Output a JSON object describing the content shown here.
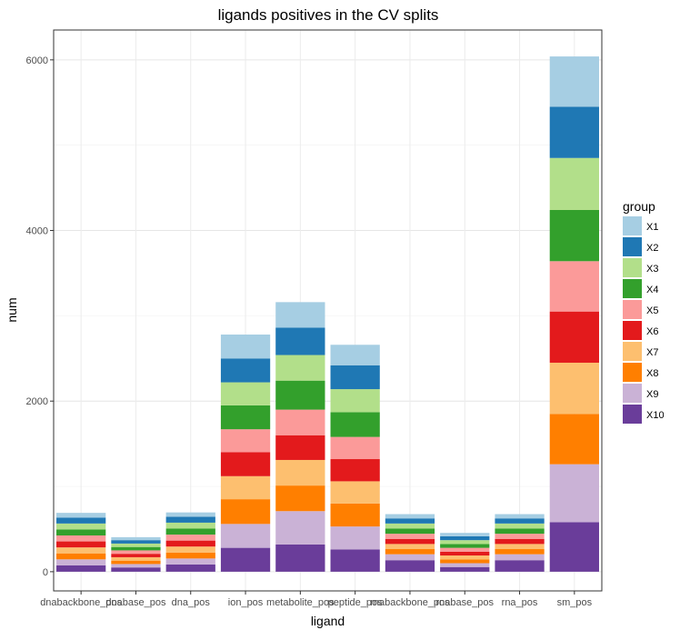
{
  "chart_data": {
    "type": "bar",
    "stacked": true,
    "title": "ligands positives in the CV splits",
    "xlabel": "ligand",
    "ylabel": "num",
    "ylim": [
      -225,
      6350
    ],
    "yticks": [
      0,
      2000,
      4000,
      6000
    ],
    "grid": true,
    "legend_title": "group",
    "legend_position": "right",
    "categories": [
      "dnabackbone_pos",
      "dnabase_pos",
      "dna_pos",
      "ion_pos",
      "metabolite_pos",
      "peptide_pos",
      "rnabackbone_pos",
      "rnabase_pos",
      "rna_pos",
      "sm_pos"
    ],
    "series": [
      {
        "name": "X10",
        "color": "#6A3D9A",
        "values": [
          75,
          50,
          85,
          280,
          320,
          260,
          135,
          55,
          135,
          580
        ]
      },
      {
        "name": "X9",
        "color": "#CAB2D6",
        "values": [
          70,
          40,
          70,
          280,
          390,
          270,
          70,
          45,
          70,
          680
        ]
      },
      {
        "name": "X8",
        "color": "#FF7F00",
        "values": [
          70,
          40,
          70,
          290,
          300,
          270,
          60,
          45,
          60,
          590
        ]
      },
      {
        "name": "X7",
        "color": "#FDBF6F",
        "values": [
          70,
          40,
          70,
          270,
          300,
          260,
          60,
          45,
          60,
          600
        ]
      },
      {
        "name": "X6",
        "color": "#E31A1C",
        "values": [
          70,
          40,
          70,
          280,
          290,
          260,
          60,
          45,
          60,
          600
        ]
      },
      {
        "name": "X5",
        "color": "#FB9A99",
        "values": [
          70,
          40,
          70,
          270,
          300,
          260,
          60,
          45,
          60,
          590
        ]
      },
      {
        "name": "X4",
        "color": "#33A02C",
        "values": [
          70,
          40,
          70,
          280,
          340,
          290,
          60,
          45,
          60,
          600
        ]
      },
      {
        "name": "X3",
        "color": "#B2DF8A",
        "values": [
          70,
          40,
          70,
          270,
          300,
          270,
          60,
          45,
          60,
          610
        ]
      },
      {
        "name": "X2",
        "color": "#1F78B4",
        "values": [
          70,
          40,
          70,
          280,
          320,
          280,
          60,
          45,
          60,
          600
        ]
      },
      {
        "name": "X1",
        "color": "#A6CEE3",
        "values": [
          55,
          35,
          50,
          280,
          300,
          240,
          50,
          40,
          50,
          590
        ]
      }
    ]
  }
}
